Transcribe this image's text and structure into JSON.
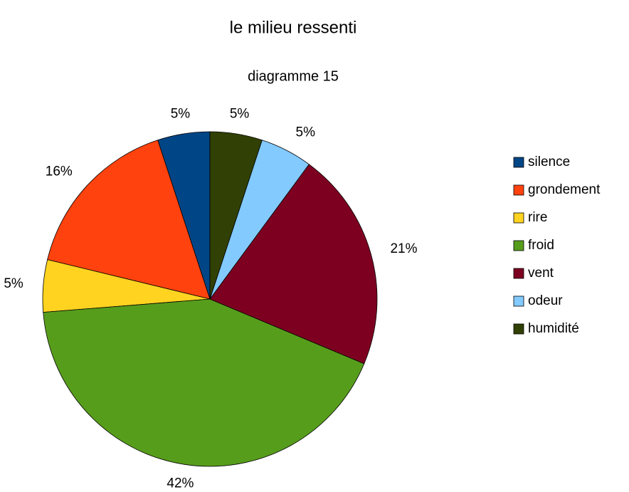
{
  "chart_data": {
    "type": "pie",
    "title": "le milieu ressenti",
    "subtitle": "diagramme 15",
    "categories": [
      "silence",
      "grondement",
      "rire",
      "froid",
      "vent",
      "odeur",
      "humidité"
    ],
    "values": [
      5,
      16,
      5,
      42,
      21,
      5,
      5
    ],
    "value_labels": [
      "5%",
      "16%",
      "5%",
      "42%",
      "21%",
      "5%",
      "5%"
    ],
    "colors": [
      "#004586",
      "#ff420e",
      "#ffd320",
      "#579d1c",
      "#7e0021",
      "#83caff",
      "#314004"
    ],
    "legend": "right"
  }
}
